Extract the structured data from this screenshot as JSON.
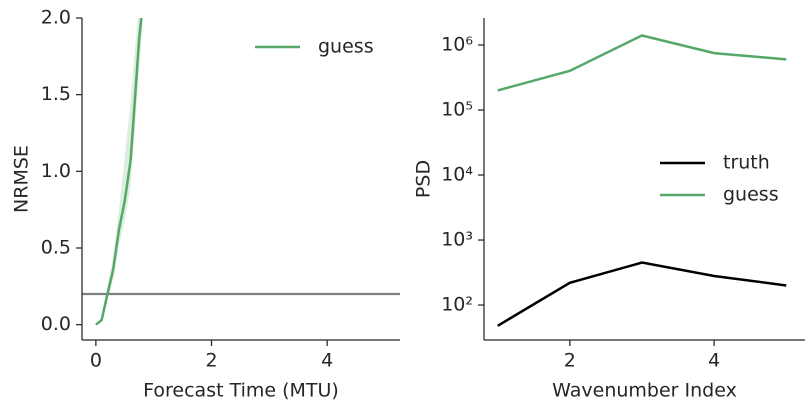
{
  "chart_data": [
    {
      "type": "line",
      "ylabel": "NRMSE",
      "xlabel": "Forecast Time (MTU)",
      "x": [
        0,
        0.1,
        0.2,
        0.3,
        0.4,
        0.5,
        0.6,
        0.7,
        0.75,
        0.8
      ],
      "series": [
        {
          "name": "guess",
          "color": "#55a868",
          "values": [
            0,
            0.03,
            0.2,
            0.36,
            0.62,
            0.81,
            1.07,
            1.6,
            1.87,
            2.05
          ],
          "lower": [
            0,
            0.02,
            0.15,
            0.3,
            0.52,
            0.68,
            0.9,
            1.4,
            1.7,
            1.9
          ],
          "upper": [
            0,
            0.05,
            0.25,
            0.45,
            0.75,
            1.1,
            1.45,
            1.9,
            2.1,
            2.2
          ]
        }
      ],
      "hline": 0.2,
      "hline_color": "#808080",
      "xlim": [
        -0.24,
        5.26
      ],
      "ylim": [
        -0.1,
        2.0
      ],
      "xticks": [
        0,
        2,
        4
      ],
      "yticks": [
        {
          "value": 0,
          "label": "0.0"
        },
        {
          "value": 0.5,
          "label": "0.5"
        },
        {
          "value": 1,
          "label": "1.0"
        },
        {
          "value": 1.5,
          "label": "1.5"
        },
        {
          "value": 2,
          "label": "2.0"
        }
      ],
      "legend": "upper right"
    },
    {
      "type": "line",
      "log_y": true,
      "ylabel": "PSD",
      "xlabel": "Wavenumber Index",
      "x": [
        1,
        2,
        3,
        4,
        5
      ],
      "series": [
        {
          "name": "truth",
          "color": "#000000",
          "values": [
            48,
            220,
            450,
            280,
            200
          ]
        },
        {
          "name": "guess",
          "color": "#55a868",
          "values": [
            200000,
            400000,
            1400000,
            750000,
            600000
          ]
        }
      ],
      "xlim": [
        0.81,
        5.26
      ],
      "ylim": [
        29,
        2600000
      ],
      "xticks": [
        2,
        4
      ],
      "yticks": [
        {
          "value": 100,
          "label": "10²"
        },
        {
          "value": 1000,
          "label": "10³"
        },
        {
          "value": 10000,
          "label": "10⁴"
        },
        {
          "value": 100000,
          "label": "10⁵"
        },
        {
          "value": 1000000,
          "label": "10⁶"
        }
      ],
      "legend": "center right"
    }
  ]
}
